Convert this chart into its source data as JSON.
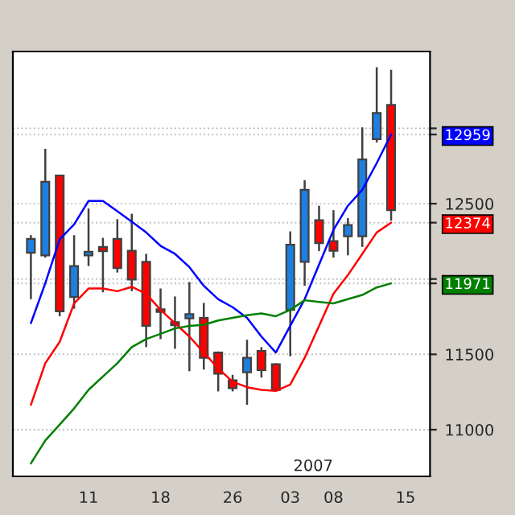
{
  "chart_data": {
    "type": "candlestick",
    "categories": [
      null,
      null,
      null,
      null,
      "11",
      null,
      null,
      null,
      null,
      "18",
      null,
      null,
      null,
      null,
      "26",
      null,
      null,
      null,
      "03",
      null,
      null,
      "08",
      null,
      null,
      null,
      null,
      "15"
    ],
    "ohlc": [
      [
        12174,
        12291,
        11866,
        12266
      ],
      [
        12157,
        12864,
        12142,
        12645
      ],
      [
        12687,
        12687,
        11753,
        11785
      ],
      [
        11880,
        12291,
        11803,
        12086
      ],
      [
        12157,
        12468,
        12086,
        12181
      ],
      [
        12213,
        12273,
        11912,
        12185
      ],
      [
        12266,
        12397,
        12043,
        12072
      ],
      [
        12188,
        12433,
        11919,
        11997
      ],
      [
        12114,
        12167,
        11548,
        11689
      ],
      [
        11799,
        11937,
        11601,
        11781
      ],
      [
        11714,
        11884,
        11537,
        11693
      ],
      [
        11739,
        11980,
        11388,
        11767
      ],
      [
        11742,
        11841,
        11399,
        11477
      ],
      [
        11512,
        11519,
        11254,
        11371
      ],
      [
        11328,
        11364,
        11254,
        11275
      ],
      [
        11381,
        11597,
        11165,
        11477
      ],
      [
        11523,
        11548,
        11346,
        11395
      ],
      [
        11434,
        11441,
        11254,
        11264
      ],
      [
        11795,
        12316,
        11487,
        12227
      ],
      [
        12114,
        12656,
        11955,
        12592
      ],
      [
        12390,
        12486,
        12185,
        12238
      ],
      [
        12252,
        12457,
        12142,
        12188
      ],
      [
        12284,
        12404,
        12157,
        12358
      ],
      [
        12284,
        13006,
        12213,
        12794
      ],
      [
        12928,
        13406,
        12907,
        13102
      ],
      [
        13155,
        13388,
        12387,
        12457
      ],
      null
    ],
    "colors": [
      "#1e7fe0",
      "#1e7fe0",
      "#ff0000",
      "#1e7fe0",
      "#1e7fe0",
      "#ff0000",
      "#ff0000",
      "#ff0000",
      "#ff0000",
      "#ff0000",
      "#ff0000",
      "#1e7fe0",
      "#ff0000",
      "#ff0000",
      "#ff0000",
      "#1e7fe0",
      "#ff0000",
      "#ff0000",
      "#1e7fe0",
      "#1e7fe0",
      "#ff0000",
      "#ff0000",
      "#1e7fe0",
      "#1e7fe0",
      "#1e7fe0",
      "#ff0000",
      null
    ],
    "series": [
      {
        "type": "line",
        "color": "#0000ff",
        "values": [
          11707,
          11972,
          12263,
          12362,
          12518,
          12518,
          12450,
          12380,
          12309,
          12220,
          12167,
          12079,
          11955,
          11866,
          11813,
          11742,
          11618,
          11512,
          11689,
          11866,
          12096,
          12326,
          12486,
          12592,
          12769,
          12959,
          null
        ]
      },
      {
        "type": "line",
        "color": "#ff0000",
        "values": [
          11165,
          11441,
          11583,
          11838,
          11937,
          11937,
          11919,
          11948,
          11902,
          11795,
          11707,
          11618,
          11512,
          11406,
          11318,
          11282,
          11264,
          11257,
          11300,
          11477,
          11689,
          11902,
          12026,
          12167,
          12309,
          12374,
          null
        ]
      },
      {
        "type": "line",
        "color": "#008000",
        "values": [
          10776,
          10928,
          11034,
          11141,
          11264,
          11353,
          11441,
          11548,
          11601,
          11636,
          11672,
          11689,
          11696,
          11725,
          11742,
          11760,
          11771,
          11753,
          11795,
          11859,
          11848,
          11838,
          11866,
          11894,
          11944,
          11971,
          null
        ]
      }
    ],
    "ylim": [
      10690,
      13510
    ],
    "yticks": [
      11000,
      11500,
      11971,
      {
        "value": 12000,
        "label": null
      },
      12374,
      12500,
      12959,
      {
        "value": 13000,
        "label": null
      }
    ],
    "grid": "y",
    "annotations": [
      "2007"
    ]
  }
}
